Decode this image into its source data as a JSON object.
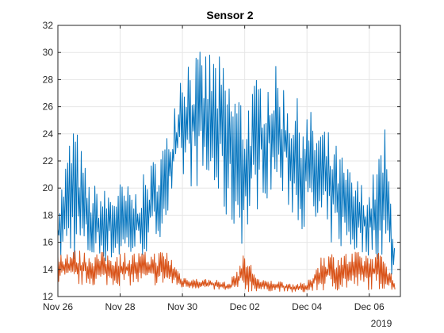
{
  "chart_data": {
    "type": "line",
    "title": "Sensor 2",
    "xlabel": "",
    "ylabel": "",
    "x_start": "2019-11-26",
    "x_end": "2019-12-07",
    "xlim": [
      "2019-11-26",
      "2019-12-07"
    ],
    "x_ticks": [
      {
        "date": "2019-11-26",
        "label": "Nov 26"
      },
      {
        "date": "2019-11-28",
        "label": "Nov 28"
      },
      {
        "date": "2019-11-30",
        "label": "Nov 30"
      },
      {
        "date": "2019-12-02",
        "label": "Dec 02"
      },
      {
        "date": "2019-12-04",
        "label": "Dec 04"
      },
      {
        "date": "2019-12-06",
        "label": "Dec 06"
      }
    ],
    "x_secondary_label": "2019",
    "ylim": [
      12,
      32
    ],
    "y_ticks": [
      12,
      14,
      16,
      18,
      20,
      22,
      24,
      26,
      28,
      30,
      32
    ],
    "grid": true,
    "box": true,
    "series": [
      {
        "color": "#0072BD",
        "x": [
          "2019-11-26 00:00",
          "2019-11-26 12:00",
          "2019-11-27 00:00",
          "2019-11-27 12:00",
          "2019-11-28 00:00",
          "2019-11-28 12:00",
          "2019-11-29 00:00",
          "2019-11-29 12:00",
          "2019-11-30 00:00",
          "2019-11-30 12:00",
          "2019-12-01 00:00",
          "2019-12-01 12:00",
          "2019-12-02 00:00",
          "2019-12-02 12:00",
          "2019-12-03 00:00",
          "2019-12-03 12:00",
          "2019-12-04 00:00",
          "2019-12-04 12:00",
          "2019-12-05 00:00",
          "2019-12-05 12:00",
          "2019-12-06 00:00",
          "2019-12-06 12:00",
          "2019-12-06 20:00"
        ],
        "y_max": [
          19.0,
          25.5,
          20.5,
          20.0,
          20.5,
          20.0,
          22.0,
          24.0,
          30.5,
          30.0,
          30.5,
          28.5,
          27.0,
          28.5,
          29.0,
          27.0,
          26.0,
          25.0,
          23.0,
          21.0,
          20.0,
          24.5,
          16.5
        ],
        "y_min": [
          14.5,
          14.5,
          14.5,
          14.5,
          14.5,
          14.8,
          15.0,
          17.5,
          20.0,
          20.0,
          19.0,
          17.0,
          15.5,
          19.0,
          19.5,
          18.0,
          16.5,
          16.0,
          15.5,
          15.0,
          15.0,
          14.5,
          12.8
        ]
      },
      {
        "color": "#D95319",
        "x": [
          "2019-11-26 00:00",
          "2019-11-26 12:00",
          "2019-11-27 00:00",
          "2019-11-27 12:00",
          "2019-11-28 00:00",
          "2019-11-28 12:00",
          "2019-11-29 00:00",
          "2019-11-29 12:00",
          "2019-11-30 00:00",
          "2019-11-30 12:00",
          "2019-12-01 00:00",
          "2019-12-01 12:00",
          "2019-12-02 00:00",
          "2019-12-02 12:00",
          "2019-12-03 00:00",
          "2019-12-03 12:00",
          "2019-12-04 00:00",
          "2019-12-04 12:00",
          "2019-12-05 00:00",
          "2019-12-05 12:00",
          "2019-12-06 00:00",
          "2019-12-06 12:00",
          "2019-12-06 20:00"
        ],
        "y_max": [
          15.5,
          15.5,
          15.3,
          15.3,
          15.3,
          15.3,
          15.3,
          15.5,
          13.5,
          13.3,
          13.3,
          13.0,
          15.3,
          13.2,
          13.2,
          13.0,
          13.0,
          15.3,
          15.3,
          15.3,
          15.3,
          15.3,
          12.8
        ],
        "y_min": [
          12.8,
          12.8,
          12.8,
          12.8,
          12.8,
          12.8,
          12.8,
          12.8,
          12.6,
          12.6,
          12.5,
          12.4,
          12.3,
          12.4,
          12.4,
          12.3,
          12.3,
          12.4,
          12.4,
          12.5,
          12.5,
          12.5,
          12.5
        ]
      }
    ]
  }
}
